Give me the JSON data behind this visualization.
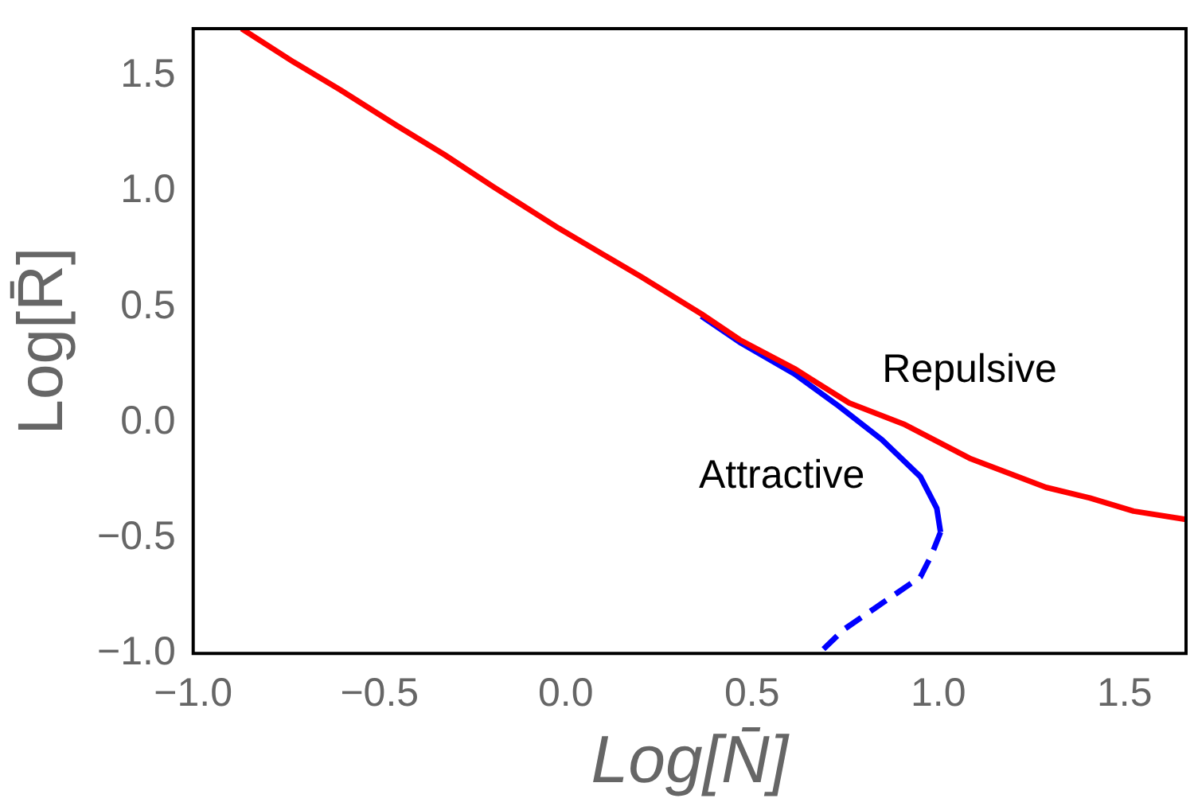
{
  "chart_data": {
    "type": "line",
    "xlabel": "Log[N̄]",
    "ylabel": "Log[R̄]",
    "xlim": [
      -1,
      1.665
    ],
    "ylim": [
      -1,
      1.705
    ],
    "xticks": [
      {
        "value": -1,
        "label": "−1.0"
      },
      {
        "value": -0.5,
        "label": "−0.5"
      },
      {
        "value": 0,
        "label": "0.0"
      },
      {
        "value": 0.5,
        "label": "0.5"
      },
      {
        "value": 1,
        "label": "1.0"
      },
      {
        "value": 1.5,
        "label": "1.5"
      }
    ],
    "yticks": [
      {
        "value": -1,
        "label": "−1.0"
      },
      {
        "value": -0.5,
        "label": "−0.5"
      },
      {
        "value": 0,
        "label": "0.0"
      },
      {
        "value": 0.5,
        "label": "0.5"
      },
      {
        "value": 1,
        "label": "1.0"
      },
      {
        "value": 1.5,
        "label": "1.5"
      }
    ],
    "grid": false,
    "legend": false,
    "marker": "none",
    "series": [
      {
        "name": "Repulsive",
        "color": "#ff0000",
        "line_style": "solid",
        "x": [
          -0.87,
          -0.73,
          -0.605,
          -0.458,
          -0.326,
          -0.194,
          -0.018,
          0.203,
          0.364,
          0.467,
          0.614,
          0.761,
          0.907,
          1.084,
          1.289,
          1.407,
          1.524,
          1.664
        ],
        "values": [
          1.705,
          1.56,
          1.44,
          1.29,
          1.16,
          1.02,
          0.84,
          0.63,
          0.47,
          0.358,
          0.233,
          0.084,
          -0.007,
          -0.155,
          -0.281,
          -0.327,
          -0.384,
          -0.42
        ]
      },
      {
        "name": "Attractive",
        "color": "#0000ff",
        "line_style": "solid",
        "x": [
          0.364,
          0.467,
          0.614,
          0.731,
          0.849,
          0.952,
          0.996,
          1.006
        ],
        "values": [
          0.46,
          0.347,
          0.21,
          0.073,
          -0.075,
          -0.235,
          -0.372,
          -0.475
        ]
      },
      {
        "color": "#0000ff",
        "line_style": "dashed",
        "x": [
          1.006,
          0.981,
          0.952,
          0.849,
          0.746,
          0.68
        ],
        "values": [
          -0.475,
          -0.577,
          -0.669,
          -0.783,
          -0.897,
          -1.0
        ]
      }
    ]
  }
}
